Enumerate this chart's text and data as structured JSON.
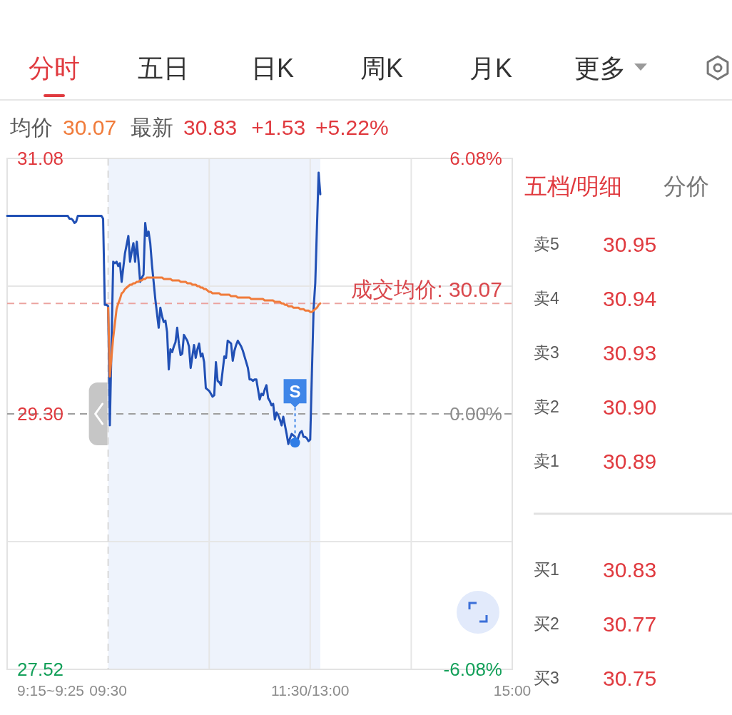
{
  "chart_data": [
    {
      "type": "other",
      "annotations": [
        "分时",
        "五日",
        "日K",
        "周K",
        "月K",
        "更多"
      ]
    },
    {
      "type": "line",
      "annotations": [
        "均价",
        "30.07",
        "最新",
        "30.83",
        "+1.53",
        "+5.22%",
        "9:15~9:25"
      ],
      "categories": [
        null,
        null,
        null,
        null,
        null,
        null,
        null,
        null,
        null,
        null,
        null,
        null,
        null,
        null,
        null,
        null,
        null,
        null,
        null,
        null,
        null,
        null,
        null,
        null,
        null,
        null,
        null,
        null,
        null,
        null,
        null,
        null,
        null,
        null,
        null,
        null,
        null,
        null,
        null,
        null,
        null,
        null,
        null,
        null,
        null,
        null,
        null,
        null,
        null,
        null,
        null,
        null,
        null,
        null,
        null,
        null,
        null,
        null,
        null,
        null,
        "09:30",
        null,
        null,
        null,
        null,
        null,
        null,
        null,
        null,
        null,
        null,
        null,
        null,
        null,
        null,
        null,
        null,
        null,
        null,
        null,
        null,
        null,
        null,
        null,
        null,
        null,
        null,
        null,
        null,
        null,
        null,
        null,
        null,
        null,
        null,
        null,
        null,
        null,
        null,
        null,
        null,
        null,
        null,
        null,
        null,
        null,
        null,
        null,
        null,
        null,
        null,
        null,
        null,
        null,
        null,
        null,
        null,
        null,
        null,
        null,
        null,
        null,
        null,
        null,
        null,
        null,
        null,
        null,
        null,
        null,
        null,
        null,
        null,
        null,
        null,
        null,
        null,
        null,
        null,
        null,
        null,
        null,
        null,
        null,
        null,
        null,
        null,
        null,
        null,
        null,
        null,
        null,
        null,
        null,
        null,
        null,
        null,
        null,
        null,
        null,
        null,
        null,
        null,
        null,
        null,
        null,
        null,
        null,
        null,
        null,
        null,
        null,
        null,
        null,
        null,
        null,
        null,
        null,
        null,
        null,
        "11:30/13:00",
        null,
        null,
        null,
        null,
        null,
        null,
        null,
        null,
        null,
        null,
        null,
        null,
        null,
        null,
        null,
        null,
        null,
        null,
        null,
        null,
        null,
        null,
        null,
        null,
        null,
        null,
        null,
        null,
        null,
        null,
        null,
        null,
        null,
        null,
        null,
        null,
        null,
        null,
        null,
        null,
        null,
        null,
        null,
        null,
        null,
        null,
        null,
        null,
        null,
        null,
        null,
        null,
        null,
        null,
        null,
        null,
        null,
        null,
        null,
        null,
        null,
        null,
        null,
        null,
        null,
        null,
        null,
        null,
        null,
        null,
        null,
        null,
        null,
        null,
        null,
        null,
        null,
        null,
        null,
        null,
        null,
        null,
        null,
        null,
        null,
        null,
        null,
        null,
        null,
        null,
        null,
        null,
        null,
        null,
        null,
        null,
        null,
        null,
        null,
        null,
        null,
        null,
        null,
        null,
        null,
        null,
        null,
        null,
        null,
        null,
        null,
        null,
        null,
        null,
        null,
        null,
        null,
        null,
        null,
        "15:00"
      ],
      "series": [
        {
          "color": "#2150b5",
          "values": [
            30.68,
            30.68,
            30.68,
            30.68,
            30.68,
            30.68,
            30.68,
            30.68,
            30.68,
            30.68,
            30.68,
            30.68,
            30.68,
            30.68,
            30.68,
            30.68,
            30.68,
            30.68,
            30.68,
            30.68,
            30.68,
            30.68,
            30.68,
            30.68,
            30.68,
            30.68,
            30.68,
            30.68,
            30.68,
            30.68,
            30.68,
            30.68,
            30.68,
            30.68,
            30.68,
            30.68,
            30.68,
            30.66,
            30.66,
            30.65,
            30.63,
            30.64,
            30.68,
            30.68,
            30.68,
            30.68,
            30.68,
            30.68,
            30.68,
            30.68,
            30.68,
            30.68,
            30.68,
            30.68,
            30.68,
            30.68,
            30.68,
            30.66,
            30.06,
            30.06,
            30.05,
            29.22,
            29.79,
            30.36,
            30.35,
            30.36,
            30.33,
            30.35,
            30.22,
            30.32,
            30.42,
            30.48,
            30.54,
            30.36,
            30.43,
            30.49,
            30.36,
            30.5,
            30.37,
            30.22,
            30.25,
            30.27,
            30.63,
            30.54,
            30.57,
            30.49,
            30.34,
            30.22,
            30.1,
            30.0,
            29.9,
            30.04,
            29.98,
            29.94,
            29.95,
            29.87,
            29.61,
            29.75,
            29.73,
            29.77,
            29.8,
            29.9,
            29.79,
            29.71,
            29.72,
            29.85,
            29.83,
            29.81,
            29.77,
            29.62,
            29.7,
            29.78,
            29.69,
            29.75,
            29.79,
            29.7,
            29.72,
            29.66,
            29.48,
            29.47,
            29.46,
            29.44,
            29.42,
            29.43,
            29.66,
            29.53,
            29.52,
            29.5,
            29.6,
            29.7,
            29.69,
            29.81,
            29.8,
            29.79,
            29.67,
            29.74,
            29.78,
            29.81,
            29.79,
            29.77,
            29.74,
            29.7,
            29.66,
            29.62,
            29.54,
            29.54,
            29.53,
            29.54,
            29.54,
            29.47,
            29.4,
            29.44,
            29.43,
            29.47,
            29.5,
            29.41,
            29.39,
            29.36,
            29.37,
            29.26,
            29.31,
            29.29,
            29.26,
            29.22,
            29.28,
            29.22,
            29.16,
            29.09,
            29.13,
            29.16,
            29.15,
            29.14,
            29.1,
            29.14,
            29.17,
            29.18,
            29.14,
            29.14,
            29.13,
            29.11,
            29.12,
            29.58,
            30.03,
            30.21,
            30.6,
            30.98,
            30.83,
            null,
            null,
            null,
            null,
            null,
            null,
            null,
            null,
            null,
            null,
            null,
            null,
            null,
            null,
            null,
            null,
            null,
            null,
            null,
            null,
            null,
            null,
            null,
            null,
            null,
            null,
            null,
            null,
            null,
            null,
            null,
            null,
            null,
            null,
            null,
            null,
            null,
            null,
            null,
            null,
            null,
            null,
            null,
            null,
            null,
            null,
            null,
            null,
            null,
            null,
            null,
            null,
            null,
            null,
            null,
            null,
            null,
            null,
            null,
            null,
            null,
            null,
            null,
            null,
            null,
            null,
            null,
            null,
            null,
            null,
            null,
            null,
            null,
            null,
            null,
            null,
            null,
            null,
            null,
            null,
            null,
            null,
            null,
            null,
            null,
            null,
            null,
            null,
            null,
            null,
            null,
            null,
            null,
            null,
            null,
            null,
            null,
            null,
            null,
            null,
            null,
            null,
            null,
            null,
            null,
            null,
            null,
            null,
            null,
            null,
            null,
            null,
            null,
            null
          ]
        },
        {
          "color": "#f07b3a",
          "values": [
            null,
            null,
            null,
            null,
            null,
            null,
            null,
            null,
            null,
            null,
            null,
            null,
            null,
            null,
            null,
            null,
            null,
            null,
            null,
            null,
            null,
            null,
            null,
            null,
            null,
            null,
            null,
            null,
            null,
            null,
            null,
            null,
            null,
            null,
            null,
            null,
            null,
            null,
            null,
            null,
            null,
            null,
            null,
            null,
            null,
            null,
            null,
            null,
            null,
            null,
            null,
            null,
            null,
            null,
            null,
            null,
            null,
            null,
            null,
            null,
            30.04,
            29.56,
            29.7,
            29.83,
            29.93,
            30.03,
            30.07,
            30.1,
            30.14,
            30.15,
            30.17,
            30.18,
            30.19,
            30.2,
            30.2,
            30.21,
            30.21,
            30.22,
            30.22,
            30.23,
            30.23,
            30.24,
            30.24,
            30.25,
            30.25,
            30.25,
            30.25,
            30.25,
            30.25,
            30.25,
            30.25,
            30.25,
            30.25,
            30.24,
            30.24,
            30.24,
            30.24,
            30.24,
            30.23,
            30.23,
            30.23,
            30.23,
            30.23,
            30.22,
            30.22,
            30.22,
            30.22,
            30.21,
            30.21,
            30.21,
            30.2,
            30.2,
            30.2,
            30.19,
            30.19,
            30.18,
            30.18,
            30.17,
            30.17,
            30.16,
            30.15,
            30.15,
            30.14,
            30.14,
            30.14,
            30.14,
            30.14,
            30.13,
            30.13,
            30.13,
            30.13,
            30.13,
            30.13,
            30.12,
            30.12,
            30.12,
            30.12,
            30.11,
            30.11,
            30.11,
            30.11,
            30.11,
            30.11,
            30.11,
            30.11,
            30.1,
            30.1,
            30.1,
            30.1,
            30.1,
            30.1,
            30.1,
            30.1,
            30.09,
            30.09,
            30.09,
            30.09,
            30.09,
            30.09,
            30.08,
            30.08,
            30.08,
            30.08,
            30.07,
            30.07,
            30.06,
            30.06,
            30.05,
            30.05,
            30.05,
            30.04,
            30.04,
            30.04,
            30.04,
            30.03,
            30.03,
            30.03,
            30.02,
            30.02,
            30.02,
            30.01,
            30.01,
            30.02,
            30.03,
            30.04,
            30.06,
            30.07,
            null,
            null,
            null,
            null,
            null,
            null,
            null,
            null,
            null,
            null,
            null,
            null,
            null,
            null,
            null,
            null,
            null,
            null,
            null,
            null,
            null,
            null,
            null,
            null,
            null,
            null,
            null,
            null,
            null,
            null,
            null,
            null,
            null,
            null,
            null,
            null,
            null,
            null,
            null,
            null,
            null,
            null,
            null,
            null,
            null,
            null,
            null,
            null,
            null,
            null,
            null,
            null,
            null,
            null,
            null,
            null,
            null,
            null,
            null,
            null,
            null,
            null,
            null,
            null,
            null,
            null,
            null,
            null,
            null,
            null,
            null,
            null,
            null,
            null,
            null,
            null,
            null,
            null,
            null,
            null,
            null,
            null,
            null,
            null,
            null,
            null,
            null,
            null,
            null,
            null,
            null,
            null,
            null,
            null,
            null,
            null,
            null,
            null,
            null,
            null,
            null,
            null,
            null,
            null,
            null,
            null,
            null,
            null,
            null,
            null,
            null,
            null,
            null,
            null
          ]
        },
        {
          "type": "scatter",
          "color": "#2f7de6",
          "values": [
            null,
            null,
            null,
            null,
            null,
            null,
            null,
            null,
            null,
            null,
            null,
            null,
            null,
            null,
            null,
            null,
            null,
            null,
            null,
            null,
            null,
            null,
            null,
            null,
            null,
            null,
            null,
            null,
            null,
            null,
            null,
            null,
            null,
            null,
            null,
            null,
            null,
            null,
            null,
            null,
            null,
            null,
            null,
            null,
            null,
            null,
            null,
            null,
            null,
            null,
            null,
            null,
            null,
            null,
            null,
            null,
            null,
            null,
            null,
            null,
            null,
            null,
            null,
            null,
            null,
            null,
            null,
            null,
            null,
            null,
            null,
            null,
            null,
            null,
            null,
            null,
            null,
            null,
            null,
            null,
            null,
            null,
            null,
            null,
            null,
            null,
            null,
            null,
            null,
            null,
            null,
            null,
            null,
            null,
            null,
            null,
            null,
            null,
            null,
            null,
            null,
            null,
            null,
            null,
            null,
            null,
            null,
            null,
            null,
            null,
            null,
            null,
            null,
            null,
            null,
            null,
            null,
            null,
            null,
            null,
            null,
            null,
            null,
            null,
            null,
            null,
            null,
            null,
            null,
            null,
            null,
            null,
            null,
            null,
            null,
            null,
            null,
            null,
            null,
            null,
            null,
            null,
            null,
            null,
            null,
            null,
            null,
            null,
            null,
            null,
            null,
            null,
            null,
            null,
            null,
            null,
            null,
            null,
            null,
            null,
            null,
            null,
            null,
            null,
            null,
            null,
            null,
            null,
            null,
            null,
            null,
            29.1,
            null,
            null,
            null,
            null,
            null,
            null,
            null,
            null,
            null,
            null,
            null,
            null,
            null,
            null,
            null,
            null,
            null,
            null,
            null,
            null,
            null,
            null,
            null,
            null,
            null,
            null,
            null,
            null,
            null,
            null,
            null,
            null,
            null,
            null,
            null,
            null,
            null,
            null,
            null,
            null,
            null,
            null,
            null,
            null,
            null,
            null,
            null,
            null,
            null,
            null,
            null,
            null,
            null,
            null,
            null,
            null,
            null,
            null,
            null,
            null,
            null,
            null,
            null,
            null,
            null,
            null,
            null,
            null,
            null,
            null,
            null,
            null,
            null,
            null,
            null,
            null,
            null,
            null,
            null,
            null,
            null,
            null,
            null,
            null,
            null,
            null,
            null,
            null,
            null,
            null,
            null,
            null,
            null,
            null,
            null,
            null,
            null,
            null,
            null,
            null,
            null,
            null,
            null,
            null,
            null,
            null,
            null,
            null,
            null,
            null,
            null,
            null,
            null,
            null,
            null,
            null,
            null,
            null,
            null,
            null,
            null,
            null,
            null,
            null,
            null,
            null,
            null,
            null,
            null
          ],
          "value_labels": [
            null,
            null,
            null,
            null,
            null,
            null,
            null,
            null,
            null,
            null,
            null,
            null,
            null,
            null,
            null,
            null,
            null,
            null,
            null,
            null,
            null,
            null,
            null,
            null,
            null,
            null,
            null,
            null,
            null,
            null,
            null,
            null,
            null,
            null,
            null,
            null,
            null,
            null,
            null,
            null,
            null,
            null,
            null,
            null,
            null,
            null,
            null,
            null,
            null,
            null,
            null,
            null,
            null,
            null,
            null,
            null,
            null,
            null,
            null,
            null,
            null,
            null,
            null,
            null,
            null,
            null,
            null,
            null,
            null,
            null,
            null,
            null,
            null,
            null,
            null,
            null,
            null,
            null,
            null,
            null,
            null,
            null,
            null,
            null,
            null,
            null,
            null,
            null,
            null,
            null,
            null,
            null,
            null,
            null,
            null,
            null,
            null,
            null,
            null,
            null,
            null,
            null,
            null,
            null,
            null,
            null,
            null,
            null,
            null,
            null,
            null,
            null,
            null,
            null,
            null,
            null,
            null,
            null,
            null,
            null,
            null,
            null,
            null,
            null,
            null,
            null,
            null,
            null,
            null,
            null,
            null,
            null,
            null,
            null,
            null,
            null,
            null,
            null,
            null,
            null,
            null,
            null,
            null,
            null,
            null,
            null,
            null,
            null,
            null,
            null,
            null,
            null,
            null,
            null,
            null,
            null,
            null,
            null,
            null,
            null,
            null,
            null,
            null,
            null,
            null,
            null,
            null,
            null,
            null,
            null,
            null,
            "S",
            null,
            null,
            null,
            null,
            null,
            null,
            null,
            null,
            null,
            null,
            null,
            null,
            null,
            null,
            null,
            null,
            null,
            null,
            null,
            null,
            null,
            null,
            null,
            null,
            null,
            null,
            null,
            null,
            null,
            null,
            null,
            null,
            null,
            null,
            null,
            null,
            null,
            null,
            null,
            null,
            null,
            null,
            null,
            null,
            null,
            null,
            null,
            null,
            null,
            null,
            null,
            null,
            null,
            null,
            null,
            null,
            null,
            null,
            null,
            null,
            null,
            null,
            null,
            null,
            null,
            null,
            null,
            null,
            null,
            null,
            null,
            null,
            null,
            null,
            null,
            null,
            null,
            null,
            null,
            null,
            null,
            null,
            null,
            null,
            null,
            null,
            null,
            null,
            null,
            null,
            null,
            null,
            null,
            null,
            null,
            null,
            null,
            null,
            null,
            null,
            null,
            null,
            null,
            null,
            null,
            null,
            null,
            null,
            null,
            null,
            null,
            null,
            null,
            null,
            null,
            null,
            null,
            null,
            null,
            null,
            null,
            null,
            null,
            null,
            null,
            null,
            null,
            null,
            null
          ]
        }
      ],
      "ylim": [
        27.52,
        31.08
      ],
      "yticks": [
        27.52,
        {
          "value": 28.41,
          "label": null
        },
        {
          "value": 29.3,
          "label": "29.30"
        },
        {
          "value": 30.19,
          "label": null
        },
        31.08
      ],
      "y2lim": [
        -6.08,
        6.08
      ],
      "y2ticks": [
        {
          "value": -6.08,
          "label": "-6.08%"
        },
        {
          "value": 0,
          "label": "0.00%"
        },
        {
          "value": 6.08,
          "label": "6.08%"
        }
      ],
      "ref_lines": [
        {
          "axis": "y",
          "value": 29.3,
          "color": "#9e9e9e",
          "line_style": "dashed"
        },
        {
          "axis": "y",
          "value": 30.07,
          "label": "成交均价: 30.07",
          "color": "#eba39f",
          "line_style": "dashed"
        },
        {
          "axis": "x",
          "value": "09:30",
          "color": "#d9d9d9",
          "line_style": "dashed"
        }
      ],
      "grid": true
    },
    {
      "type": "other",
      "title": "五档/明细",
      "annotations": [
        "分价",
        "卖5",
        "30.95",
        "卖4",
        "30.94",
        "卖3",
        "30.93",
        "卖2",
        "30.90",
        "卖1",
        "30.89",
        "买1",
        "30.83",
        "买2",
        "30.77",
        "买3",
        "30.75"
      ]
    }
  ]
}
